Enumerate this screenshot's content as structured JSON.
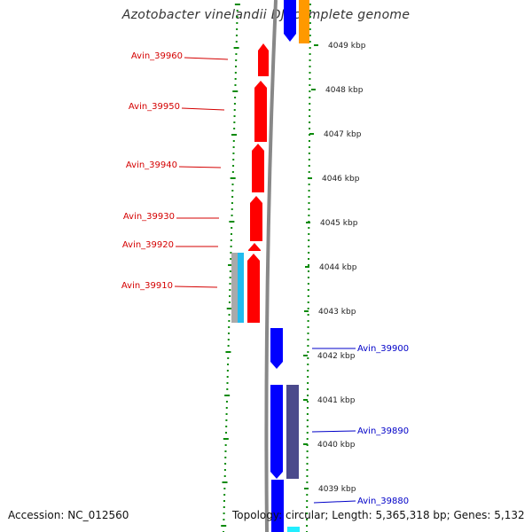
{
  "title": "Azotobacter vinelandii DJ, complete genome",
  "footer": {
    "accession": "Accession: NC_012560",
    "topology": "Topology: circular; Length: 5,365,318 bp; Genes: 5,132"
  },
  "scale_ticks": [
    "4049 kbp",
    "4048 kbp",
    "4047 kbp",
    "4046 kbp",
    "4045 kbp",
    "4044 kbp",
    "4043 kbp",
    "4042 kbp",
    "4041 kbp",
    "4040 kbp",
    "4039 kbp"
  ],
  "gene_labels_reverse": [
    "Avin_39960",
    "Avin_39950",
    "Avin_39940",
    "Avin_39930",
    "Avin_39920",
    "Avin_39910"
  ],
  "gene_labels_forward": [
    "Avin_39900",
    "Avin_39890",
    "Avin_39880"
  ],
  "colors": {
    "reverse_gene": "#ff0000",
    "forward_gene": "#0000ff",
    "label_reverse": "#d40000",
    "label_forward": "#0000c8",
    "backbone": "#888888",
    "gc_dots": "#0a8a0a",
    "feature_orange": "#ff9900",
    "feature_cyan": "#22bbee",
    "feature_gray": "#aaaaaa",
    "feature_slate": "#4b4a8c"
  }
}
